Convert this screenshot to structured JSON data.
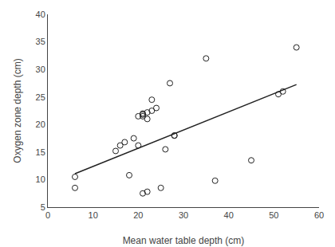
{
  "chart_data": {
    "type": "scatter",
    "xlabel": "Mean water table depth (cm)",
    "ylabel": "Oxygen zone depth (cm)",
    "xlim": [
      0,
      60
    ],
    "ylim": [
      5,
      40
    ],
    "xticks": [
      0,
      10,
      20,
      30,
      40,
      50,
      60
    ],
    "yticks": [
      5,
      10,
      15,
      20,
      25,
      30,
      35,
      40
    ],
    "grid": false,
    "series": [
      {
        "type": "scatter",
        "marker": "open circle",
        "color": "#222222",
        "x": [
          6,
          6,
          15,
          16,
          17,
          18,
          19,
          20,
          20,
          21,
          21,
          21,
          21,
          22,
          22,
          22,
          23,
          23,
          24,
          25,
          26,
          27,
          28,
          28,
          35,
          37,
          45,
          51,
          52,
          55
        ],
        "values": [
          10.5,
          8.5,
          15.2,
          16.2,
          16.8,
          10.8,
          17.5,
          21.5,
          16.2,
          22.0,
          21.5,
          21.8,
          7.5,
          22.2,
          21.0,
          7.8,
          22.5,
          24.5,
          23.0,
          8.5,
          15.5,
          27.5,
          18.0,
          18.0,
          32.0,
          9.8,
          13.5,
          25.5,
          26.0,
          34.0
        ]
      },
      {
        "type": "line",
        "line_style": "solid",
        "color": "#222222",
        "x": [
          6,
          55
        ],
        "values": [
          11.08,
          27.25
        ]
      }
    ]
  }
}
